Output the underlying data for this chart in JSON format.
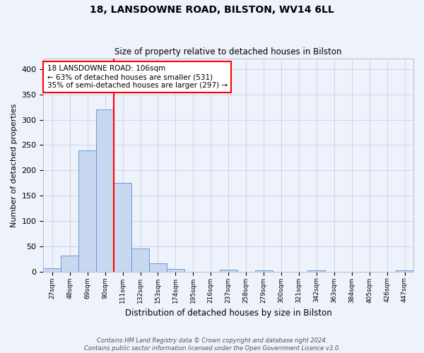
{
  "title1": "18, LANSDOWNE ROAD, BILSTON, WV14 6LL",
  "title2": "Size of property relative to detached houses in Bilston",
  "xlabel": "Distribution of detached houses by size in Bilston",
  "ylabel": "Number of detached properties",
  "bin_labels": [
    "27sqm",
    "48sqm",
    "69sqm",
    "90sqm",
    "111sqm",
    "132sqm",
    "153sqm",
    "174sqm",
    "195sqm",
    "216sqm",
    "237sqm",
    "258sqm",
    "279sqm",
    "300sqm",
    "321sqm",
    "342sqm",
    "363sqm",
    "384sqm",
    "405sqm",
    "426sqm",
    "447sqm"
  ],
  "bin_values": [
    7,
    32,
    239,
    320,
    175,
    46,
    16,
    5,
    0,
    0,
    4,
    0,
    3,
    0,
    0,
    3,
    0,
    0,
    0,
    0,
    3
  ],
  "bar_color": "#c8d8f0",
  "bar_edge_color": "#5b8fcf",
  "red_line_bin_index": 4,
  "annotation_text": "18 LANSDOWNE ROAD: 106sqm\n← 63% of detached houses are smaller (531)\n35% of semi-detached houses are larger (297) →",
  "annotation_box_color": "white",
  "annotation_box_edge_color": "red",
  "red_line_color": "red",
  "grid_color": "#ccd5ee",
  "background_color": "#eef2fa",
  "ylim": [
    0,
    420
  ],
  "yticks": [
    0,
    50,
    100,
    150,
    200,
    250,
    300,
    350,
    400
  ],
  "footer1": "Contains HM Land Registry data © Crown copyright and database right 2024.",
  "footer2": "Contains public sector information licensed under the Open Government Licence v3.0."
}
